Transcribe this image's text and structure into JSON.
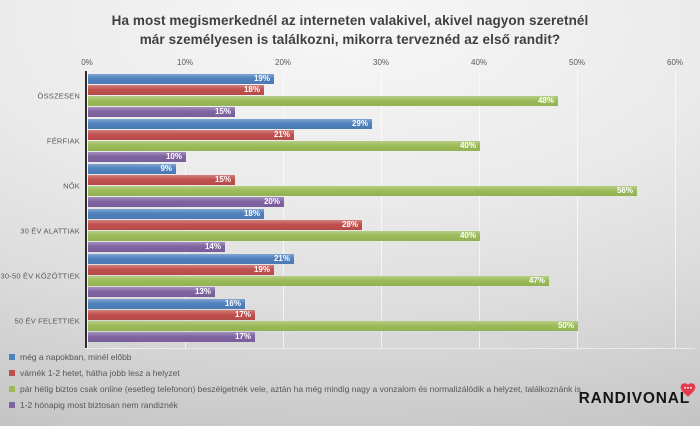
{
  "title_lines": [
    "Ha most megismerkednél az interneten valakivel, akivel nagyon szeretnél",
    "már személyesen is találkozni, mikorra terveznéd az első randit?"
  ],
  "chart_data": {
    "type": "bar",
    "orientation": "horizontal",
    "title": "Ha most megismerkednél az interneten valakivel, akivel nagyon szeretnél már személyesen is találkozni, mikorra terveznéd az első randit?",
    "categories": [
      "ÖSSZESEN",
      "FÉRFIAK",
      "NŐK",
      "30 ÉV ALATTIAK",
      "30-50 ÉV KÖZÖTTIEK",
      "50 ÉV FELETTIEK"
    ],
    "series": [
      {
        "name": "még a napokban, minél előbb",
        "color": "#4F81BD",
        "values": [
          19,
          29,
          9,
          18,
          21,
          16
        ]
      },
      {
        "name": "várnék 1-2 hetet, hátha jobb lesz a helyzet",
        "color": "#C0504D",
        "values": [
          18,
          21,
          15,
          28,
          19,
          17
        ]
      },
      {
        "name": "pár hétig biztos csak online (esetleg telefonon) beszélgetnék vele, aztán ha még mindig nagy a vonzalom és normalizálódik a helyzet, találkoznánk is",
        "color": "#9BBB59",
        "values": [
          48,
          40,
          56,
          40,
          47,
          50
        ]
      },
      {
        "name": "1-2 hónapig most biztosan nem randiznék",
        "color": "#8064A2",
        "values": [
          15,
          10,
          20,
          14,
          13,
          17
        ]
      }
    ],
    "x_axis": {
      "tick_labels": [
        "0%",
        "10%",
        "20%",
        "30%",
        "40%",
        "50%",
        "60%"
      ],
      "min": 0,
      "max": 60
    },
    "value_suffix": "%",
    "grid": true,
    "legend_position": "bottom-left"
  },
  "logo": {
    "text": "RANDIVONAL",
    "heart_color": "#e5394b",
    "heart_dots_color": "#ffffff"
  }
}
